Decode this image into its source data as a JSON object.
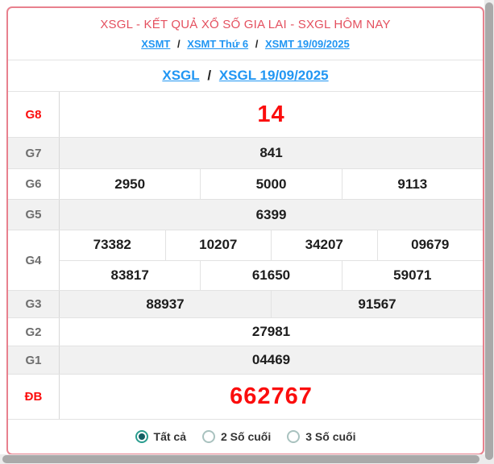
{
  "header": {
    "title": "XSGL - KẾT QUẢ XỔ SỐ GIA LAI - SXGL HÔM NAY",
    "breadcrumb": {
      "separator": "/",
      "links": [
        "XSMT",
        "XSMT Thứ 6",
        "XSMT 19/09/2025"
      ]
    },
    "sub_breadcrumb": {
      "separator": "/",
      "links": [
        "XSGL",
        "XSGL 19/09/2025"
      ]
    }
  },
  "results_table": {
    "rows": [
      {
        "label": "G8",
        "red_label": true,
        "big": true,
        "cells": [
          [
            "14"
          ]
        ]
      },
      {
        "label": "G7",
        "cells": [
          [
            "841"
          ]
        ]
      },
      {
        "label": "G6",
        "cells": [
          [
            "2950",
            "5000",
            "9113"
          ]
        ]
      },
      {
        "label": "G5",
        "cells": [
          [
            "6399"
          ]
        ]
      },
      {
        "label": "G4",
        "cells": [
          [
            "73382",
            "10207",
            "34207",
            "09679"
          ],
          [
            "83817",
            "61650",
            "59071"
          ]
        ]
      },
      {
        "label": "G3",
        "cells": [
          [
            "88937",
            "91567"
          ]
        ]
      },
      {
        "label": "G2",
        "cells": [
          [
            "27981"
          ]
        ]
      },
      {
        "label": "G1",
        "cells": [
          [
            "04469"
          ]
        ]
      },
      {
        "label": "ĐB",
        "red_label": true,
        "big": true,
        "cells": [
          [
            "662767"
          ]
        ]
      }
    ]
  },
  "filter": {
    "options": [
      {
        "label": "Tất cả",
        "selected": true
      },
      {
        "label": "2 Số cuối",
        "selected": false
      },
      {
        "label": "3 Số cuối",
        "selected": false
      }
    ]
  },
  "colors": {
    "card_border": "#e8818e",
    "title_red": "#e4505f",
    "link_blue": "#2196f3",
    "value_red": "#fb0d0d",
    "radio_teal": "#2a9d8f",
    "radio_dot": "#135e63"
  }
}
